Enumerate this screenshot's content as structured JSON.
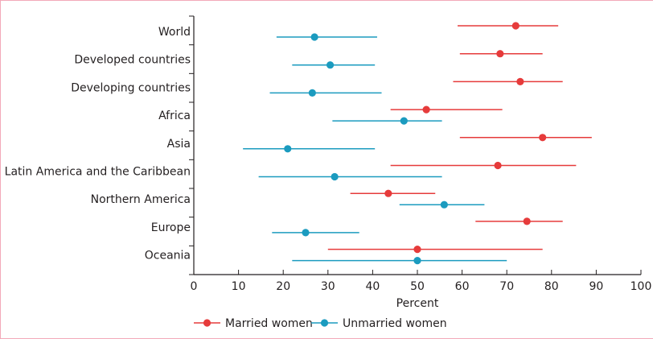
{
  "chart_data": {
    "type": "forest",
    "xlabel": "Percent",
    "xlim": [
      0,
      100
    ],
    "xticks": [
      0,
      10,
      20,
      30,
      40,
      50,
      60,
      70,
      80,
      90,
      100
    ],
    "categories": [
      "World",
      "Developed countries",
      "Developing countries",
      "Africa",
      "Asia",
      "Latin America and the Caribbean",
      "Northern America",
      "Europe",
      "Oceania"
    ],
    "legend_position": "bottom",
    "series": [
      {
        "name": "Married women",
        "color": "#e63b3b",
        "points": [
          {
            "estimate": 72,
            "low": 59,
            "high": 81.5
          },
          {
            "estimate": 68.5,
            "low": 59.5,
            "high": 78
          },
          {
            "estimate": 73,
            "low": 58,
            "high": 82.5
          },
          {
            "estimate": 52,
            "low": 44,
            "high": 69
          },
          {
            "estimate": 78,
            "low": 59.5,
            "high": 89
          },
          {
            "estimate": 68,
            "low": 44,
            "high": 85.5
          },
          {
            "estimate": 43.5,
            "low": 35,
            "high": 54
          },
          {
            "estimate": 74.5,
            "low": 63,
            "high": 82.5
          },
          {
            "estimate": 50,
            "low": 30,
            "high": 78
          }
        ]
      },
      {
        "name": "Unmarried women",
        "color": "#1b9bbf",
        "points": [
          {
            "estimate": 27,
            "low": 18.5,
            "high": 41
          },
          {
            "estimate": 30.5,
            "low": 22,
            "high": 40.5
          },
          {
            "estimate": 26.5,
            "low": 17,
            "high": 42
          },
          {
            "estimate": 47,
            "low": 31,
            "high": 55.5
          },
          {
            "estimate": 21,
            "low": 11,
            "high": 40.5
          },
          {
            "estimate": 31.5,
            "low": 14.5,
            "high": 55.5
          },
          {
            "estimate": 56,
            "low": 46,
            "high": 65
          },
          {
            "estimate": 25,
            "low": 17.5,
            "high": 37
          },
          {
            "estimate": 50,
            "low": 22,
            "high": 70
          }
        ]
      }
    ]
  }
}
